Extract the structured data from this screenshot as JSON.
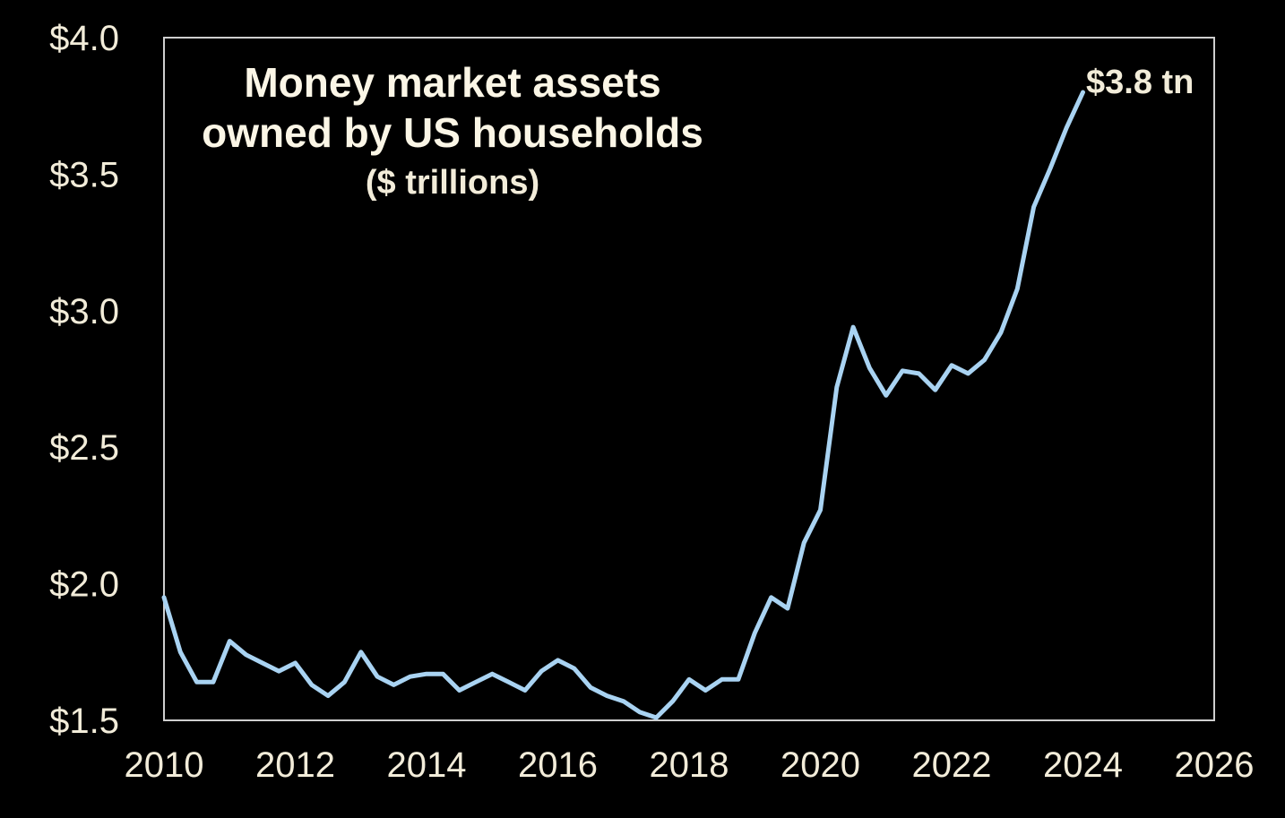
{
  "chart_data": {
    "type": "line",
    "title_lines": [
      "Money market assets",
      "owned by US households"
    ],
    "subtitle": "($ trillions)",
    "end_label": "$3.8 tn",
    "xlabel": "",
    "ylabel": "",
    "xlim": [
      2010,
      2026
    ],
    "ylim": [
      1.5,
      4.0
    ],
    "x_ticks": [
      2010,
      2012,
      2014,
      2016,
      2018,
      2020,
      2022,
      2024,
      2026
    ],
    "x_tick_labels": [
      "2010",
      "2012",
      "2014",
      "2016",
      "2018",
      "2020",
      "2022",
      "2024",
      "2026"
    ],
    "y_ticks": [
      1.5,
      2.0,
      2.5,
      3.0,
      3.5,
      4.0
    ],
    "y_tick_labels": [
      "$1.5",
      "$2.0",
      "$2.5",
      "$3.0",
      "$3.5",
      "$4.0"
    ],
    "grid": false,
    "colors": {
      "background": "#000000",
      "line": "#a9d3f2",
      "frame": "#cfcfcf",
      "text": "#f2ecd9"
    },
    "series": [
      {
        "x": [
          2010.0,
          2010.25,
          2010.5,
          2010.75,
          2011.0,
          2011.25,
          2011.5,
          2011.75,
          2012.0,
          2012.25,
          2012.5,
          2012.75,
          2013.0,
          2013.25,
          2013.5,
          2013.75,
          2014.0,
          2014.25,
          2014.5,
          2014.75,
          2015.0,
          2015.25,
          2015.5,
          2015.75,
          2016.0,
          2016.25,
          2016.5,
          2016.75,
          2017.0,
          2017.25,
          2017.5,
          2017.75,
          2018.0,
          2018.25,
          2018.5,
          2018.75,
          2019.0,
          2019.25,
          2019.5,
          2019.75,
          2020.0,
          2020.25,
          2020.5,
          2020.75,
          2021.0,
          2021.25,
          2021.5,
          2021.75,
          2022.0,
          2022.25,
          2022.5,
          2022.75,
          2023.0,
          2023.25,
          2023.5,
          2023.75,
          2024.0
        ],
        "values": [
          1.95,
          1.75,
          1.64,
          1.64,
          1.79,
          1.74,
          1.71,
          1.68,
          1.71,
          1.63,
          1.59,
          1.64,
          1.75,
          1.66,
          1.63,
          1.66,
          1.67,
          1.67,
          1.61,
          1.64,
          1.67,
          1.64,
          1.61,
          1.68,
          1.72,
          1.69,
          1.62,
          1.59,
          1.57,
          1.53,
          1.51,
          1.57,
          1.65,
          1.61,
          1.65,
          1.65,
          1.82,
          1.95,
          1.91,
          2.15,
          2.27,
          2.72,
          2.94,
          2.79,
          2.69,
          2.78,
          2.77,
          2.71,
          2.8,
          2.77,
          2.82,
          2.92,
          3.08,
          3.38,
          3.52,
          3.67,
          3.8
        ]
      }
    ]
  }
}
